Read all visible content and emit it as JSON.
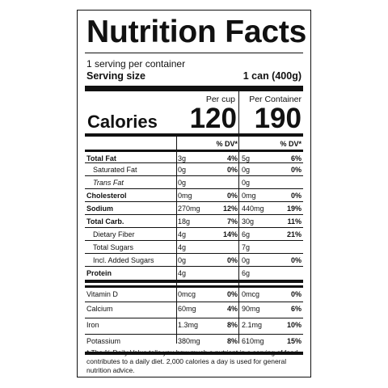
{
  "title": "Nutrition Facts",
  "servings_per_container": "1 serving per container",
  "serving_size_label": "Serving size",
  "serving_size_value": "1 can (400g)",
  "per_cup_label": "Per cup",
  "per_container_label": "Per Container",
  "calories_label": "Calories",
  "calories_per_cup": "120",
  "calories_per_container": "190",
  "dv_header": "% DV*",
  "nutrients": [
    {
      "name": "Total Fat",
      "bold": true,
      "indent": false,
      "italic": false,
      "cup_amt": "3g",
      "cup_dv": "4%",
      "cont_amt": "5g",
      "cont_dv": "6%"
    },
    {
      "name": "Saturated Fat",
      "bold": false,
      "indent": true,
      "italic": false,
      "cup_amt": "0g",
      "cup_dv": "0%",
      "cont_amt": "0g",
      "cont_dv": "0%"
    },
    {
      "name": "Trans Fat",
      "bold": false,
      "indent": true,
      "italic": true,
      "cup_amt": "0g",
      "cup_dv": "",
      "cont_amt": "0g",
      "cont_dv": ""
    },
    {
      "name": "Cholesterol",
      "bold": true,
      "indent": false,
      "italic": false,
      "cup_amt": "0mg",
      "cup_dv": "0%",
      "cont_amt": "0mg",
      "cont_dv": "0%"
    },
    {
      "name": "Sodium",
      "bold": true,
      "indent": false,
      "italic": false,
      "cup_amt": "270mg",
      "cup_dv": "12%",
      "cont_amt": "440mg",
      "cont_dv": "19%"
    },
    {
      "name": "Total Carb.",
      "bold": true,
      "indent": false,
      "italic": false,
      "cup_amt": "18g",
      "cup_dv": "7%",
      "cont_amt": "30g",
      "cont_dv": "11%"
    },
    {
      "name": "Dietary Fiber",
      "bold": false,
      "indent": true,
      "italic": false,
      "cup_amt": "4g",
      "cup_dv": "14%",
      "cont_amt": "6g",
      "cont_dv": "21%"
    },
    {
      "name": "Total Sugars",
      "bold": false,
      "indent": true,
      "italic": false,
      "cup_amt": "4g",
      "cup_dv": "",
      "cont_amt": "7g",
      "cont_dv": ""
    },
    {
      "name": "Incl. Added Sugars",
      "bold": false,
      "indent": true,
      "italic": false,
      "cup_amt": "0g",
      "cup_dv": "0%",
      "cont_amt": "0g",
      "cont_dv": "0%"
    },
    {
      "name": "Protein",
      "bold": true,
      "indent": false,
      "italic": false,
      "cup_amt": "4g",
      "cup_dv": "",
      "cont_amt": "6g",
      "cont_dv": ""
    }
  ],
  "vitamins": [
    {
      "name": "Vitamin D",
      "cup_amt": "0mcg",
      "cup_dv": "0%",
      "cont_amt": "0mcg",
      "cont_dv": "0%"
    },
    {
      "name": "Calcium",
      "cup_amt": "60mg",
      "cup_dv": "4%",
      "cont_amt": "90mg",
      "cont_dv": "6%"
    },
    {
      "name": "Iron",
      "cup_amt": "1.3mg",
      "cup_dv": "8%",
      "cont_amt": "2.1mg",
      "cont_dv": "10%"
    },
    {
      "name": "Potassium",
      "cup_amt": "380mg",
      "cup_dv": "8%",
      "cont_amt": "610mg",
      "cont_dv": "15%"
    }
  ],
  "footnote": "* The % Daily Value tells you how much a nutrient in a serving of food contributes to a daily diet. 2,000 calories a day is used for general nutrition advice."
}
